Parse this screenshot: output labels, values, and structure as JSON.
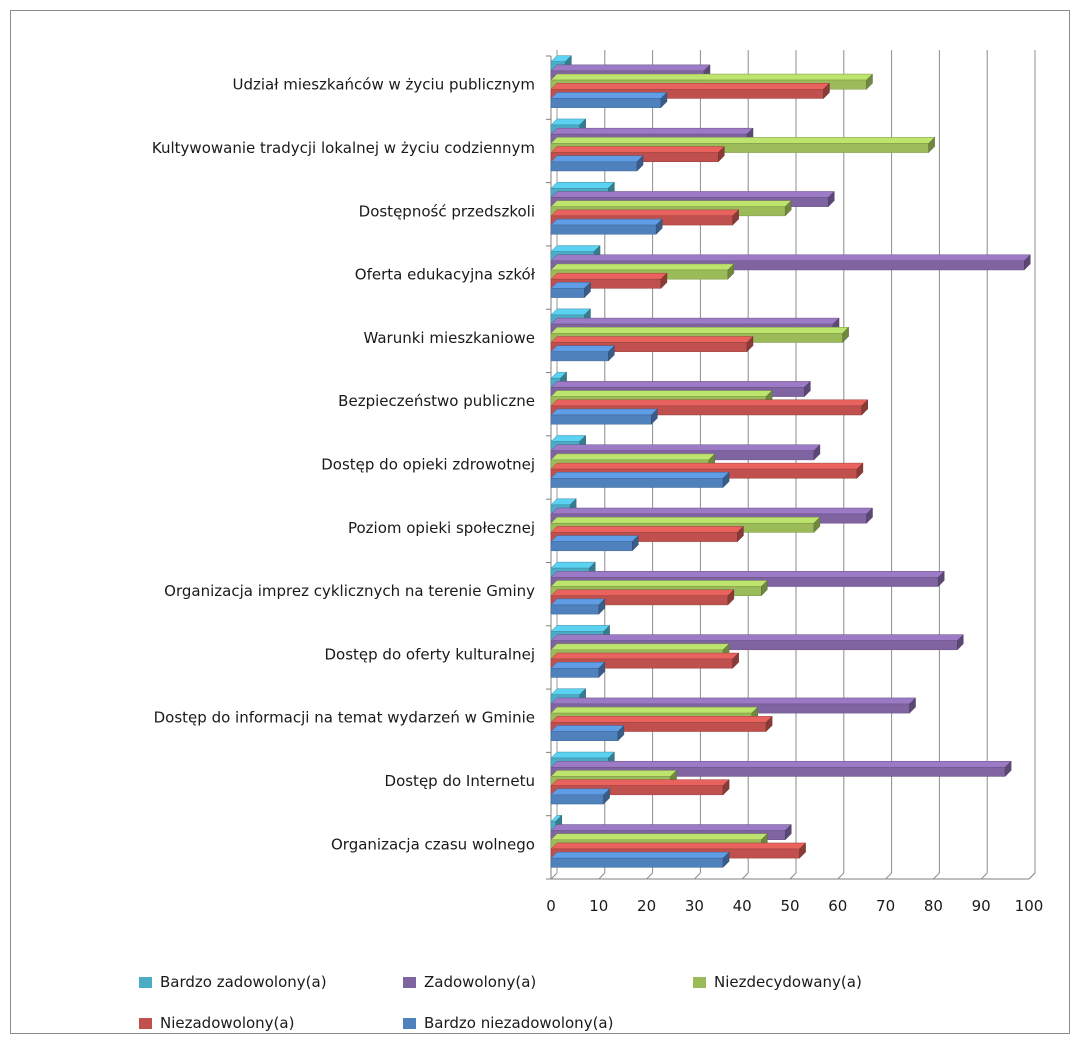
{
  "chart_data": {
    "type": "bar",
    "orientation": "horizontal",
    "style": "3d-clustered",
    "categories": [
      "Udział mieszkańców w życiu publicznym",
      "Kultywowanie tradycji lokalnej w życiu codziennym",
      "Dostępność przedszkoli",
      "Oferta edukacyjna szkół",
      "Warunki mieszkaniowe",
      "Bezpieczeństwo publiczne",
      "Dostęp do opieki zdrowotnej",
      "Poziom opieki społecznej",
      "Organizacja imprez cyklicznych na terenie Gminy",
      "Dostęp do oferty kulturalnej",
      "Dostęp do informacji na temat wydarzeń w Gminie",
      "Dostęp do Internetu",
      "Organizacja czasu wolnego"
    ],
    "series": [
      {
        "name": "Bardzo zadowolony(a)",
        "color": "#4bacc6",
        "values": [
          3,
          6,
          12,
          9,
          7,
          2,
          6,
          4,
          8,
          11,
          6,
          12,
          1
        ]
      },
      {
        "name": "Zadowolony(a)",
        "color": "#8064a2",
        "values": [
          32,
          41,
          58,
          99,
          59,
          53,
          55,
          66,
          81,
          85,
          75,
          95,
          49
        ]
      },
      {
        "name": "Niezdecydowany(a)",
        "color": "#9bbb59",
        "values": [
          66,
          79,
          49,
          37,
          61,
          45,
          33,
          55,
          44,
          36,
          42,
          25,
          44
        ]
      },
      {
        "name": "Niezadowolony(a)",
        "color": "#c0504d",
        "values": [
          57,
          35,
          38,
          23,
          41,
          65,
          64,
          39,
          37,
          38,
          45,
          36,
          52
        ]
      },
      {
        "name": "Bardzo niezadowolony(a)",
        "color": "#4f81bd",
        "values": [
          23,
          18,
          22,
          7,
          12,
          21,
          36,
          17,
          10,
          10,
          14,
          11,
          36
        ]
      }
    ],
    "xlim": [
      0,
      100
    ],
    "xticks": [
      "0",
      "10",
      "20",
      "30",
      "40",
      "50",
      "60",
      "70",
      "80",
      "90",
      "100"
    ],
    "grid": true,
    "legend_position": "bottom"
  }
}
